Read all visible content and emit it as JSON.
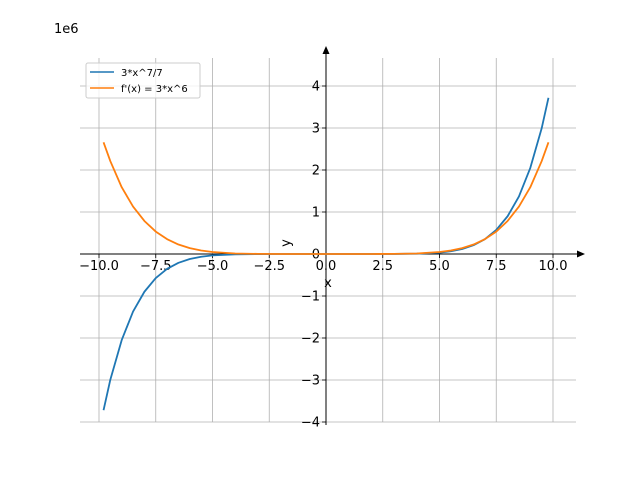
{
  "chart_data": {
    "type": "line",
    "multiplier_label": "1e6",
    "xlabel": "x",
    "ylabel": "y",
    "xlim": [
      -10.5,
      11
    ],
    "ylim": [
      -4.0,
      4.7
    ],
    "x_ticks": [
      -10.0,
      -7.5,
      -5.0,
      -2.5,
      0.0,
      2.5,
      5.0,
      7.5,
      10.0
    ],
    "x_tick_labels": [
      "−10.0",
      "−7.5",
      "−5.0",
      "−2.5",
      "0.0",
      "2.5",
      "5.0",
      "7.5",
      "10.0"
    ],
    "y_ticks": [
      -4,
      -3,
      -2,
      -1,
      0,
      1,
      2,
      3,
      4
    ],
    "y_tick_labels": [
      "−4",
      "−3",
      "−2",
      "−1",
      "0",
      "1",
      "2",
      "3",
      "4"
    ],
    "grid": true,
    "legend_position": "top-left",
    "series": [
      {
        "name": "3*x^7/7",
        "color": "#1f77b4",
        "x": [
          -9.8,
          -9.5,
          -9.0,
          -8.5,
          -8.0,
          -7.5,
          -7.0,
          -6.5,
          -6.0,
          -5.5,
          -5.0,
          -4.0,
          -3.0,
          -2.0,
          0.0,
          2.0,
          3.0,
          4.0,
          5.0,
          5.5,
          6.0,
          6.5,
          7.0,
          7.5,
          8.0,
          8.5,
          9.0,
          9.5,
          9.8
        ],
        "y": [
          -3.72,
          -2.99,
          -2.05,
          -1.37,
          -0.899,
          -0.572,
          -0.353,
          -0.21,
          -0.12,
          -0.0653,
          -0.0335,
          -0.00702,
          -0.000937,
          -5.49e-05,
          0.0,
          5.49e-05,
          0.000937,
          0.00702,
          0.0335,
          0.0653,
          0.12,
          0.21,
          0.353,
          0.572,
          0.899,
          1.37,
          2.05,
          2.99,
          3.72
        ]
      },
      {
        "name": "f'(x) = 3*x^6",
        "color": "#ff7f0e",
        "x": [
          -9.8,
          -9.5,
          -9.0,
          -8.5,
          -8.0,
          -7.5,
          -7.0,
          -6.5,
          -6.0,
          -5.5,
          -5.0,
          -4.0,
          -3.0,
          -2.0,
          0.0,
          2.0,
          3.0,
          4.0,
          5.0,
          5.5,
          6.0,
          6.5,
          7.0,
          7.5,
          8.0,
          8.5,
          9.0,
          9.5,
          9.8
        ],
        "y": [
          2.66,
          2.21,
          1.59,
          1.13,
          0.786,
          0.534,
          0.353,
          0.226,
          0.14,
          0.083,
          0.0469,
          0.0123,
          0.00219,
          0.000192,
          0.0,
          0.000192,
          0.00219,
          0.0123,
          0.0469,
          0.083,
          0.14,
          0.226,
          0.353,
          0.534,
          0.786,
          1.13,
          1.59,
          2.21,
          2.66
        ]
      }
    ]
  }
}
